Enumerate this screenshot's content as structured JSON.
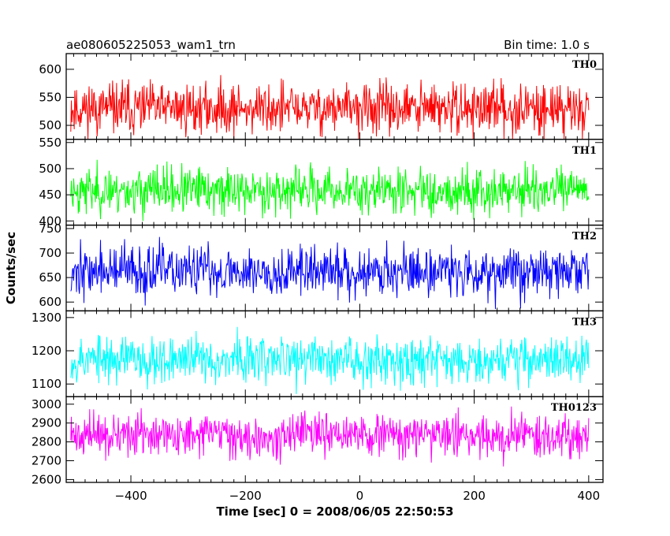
{
  "header": {
    "title": "ae080605225053_wam1_trn",
    "bin_time": "Bin time: 1.0 s"
  },
  "chart_data": {
    "type": "line",
    "xlabel": "Time [sec] 0 = 2008/06/05 22:50:53",
    "ylabel": "Counts/sec",
    "xlim": [
      -513,
      425
    ],
    "x_ticks": [
      -400,
      -200,
      0,
      200,
      400
    ],
    "x_tick_labels": [
      "−400",
      "−200",
      "0",
      "200",
      "400"
    ],
    "x_data_range": [
      -505,
      400
    ],
    "bin_time_s": 1.0,
    "grid": false,
    "panels": [
      {
        "name": "TH0",
        "color": "#ff0000",
        "ylim": [
          475,
          628
        ],
        "ticks": [
          500,
          550,
          600
        ],
        "tick_labels": [
          "500",
          "550",
          "600"
        ],
        "mean": 530,
        "spread": 23,
        "seed": 11
      },
      {
        "name": "TH1",
        "color": "#00ff00",
        "ylim": [
          392,
          556
        ],
        "ticks": [
          400,
          450,
          500,
          550
        ],
        "tick_labels": [
          "400",
          "450",
          "500",
          "550"
        ],
        "mean": 458,
        "spread": 22,
        "seed": 23
      },
      {
        "name": "TH2",
        "color": "#0000ff",
        "ylim": [
          582,
          757
        ],
        "ticks": [
          600,
          650,
          700,
          750
        ],
        "tick_labels": [
          "600",
          "650",
          "700",
          "750"
        ],
        "mean": 663,
        "spread": 26,
        "seed": 37
      },
      {
        "name": "TH3",
        "color": "#00ffff",
        "ylim": [
          1062,
          1320
        ],
        "ticks": [
          1100,
          1200,
          1300
        ],
        "tick_labels": [
          "1100",
          "1200",
          "1300"
        ],
        "mean": 1175,
        "spread": 36,
        "seed": 53
      },
      {
        "name": "TH0123",
        "color": "#ff00ff",
        "ylim": [
          2585,
          3040
        ],
        "ticks": [
          2600,
          2700,
          2800,
          2900,
          3000
        ],
        "tick_labels": [
          "2600",
          "2700",
          "2800",
          "2900",
          "3000"
        ],
        "mean": 2835,
        "spread": 55,
        "seed": 71
      }
    ]
  }
}
